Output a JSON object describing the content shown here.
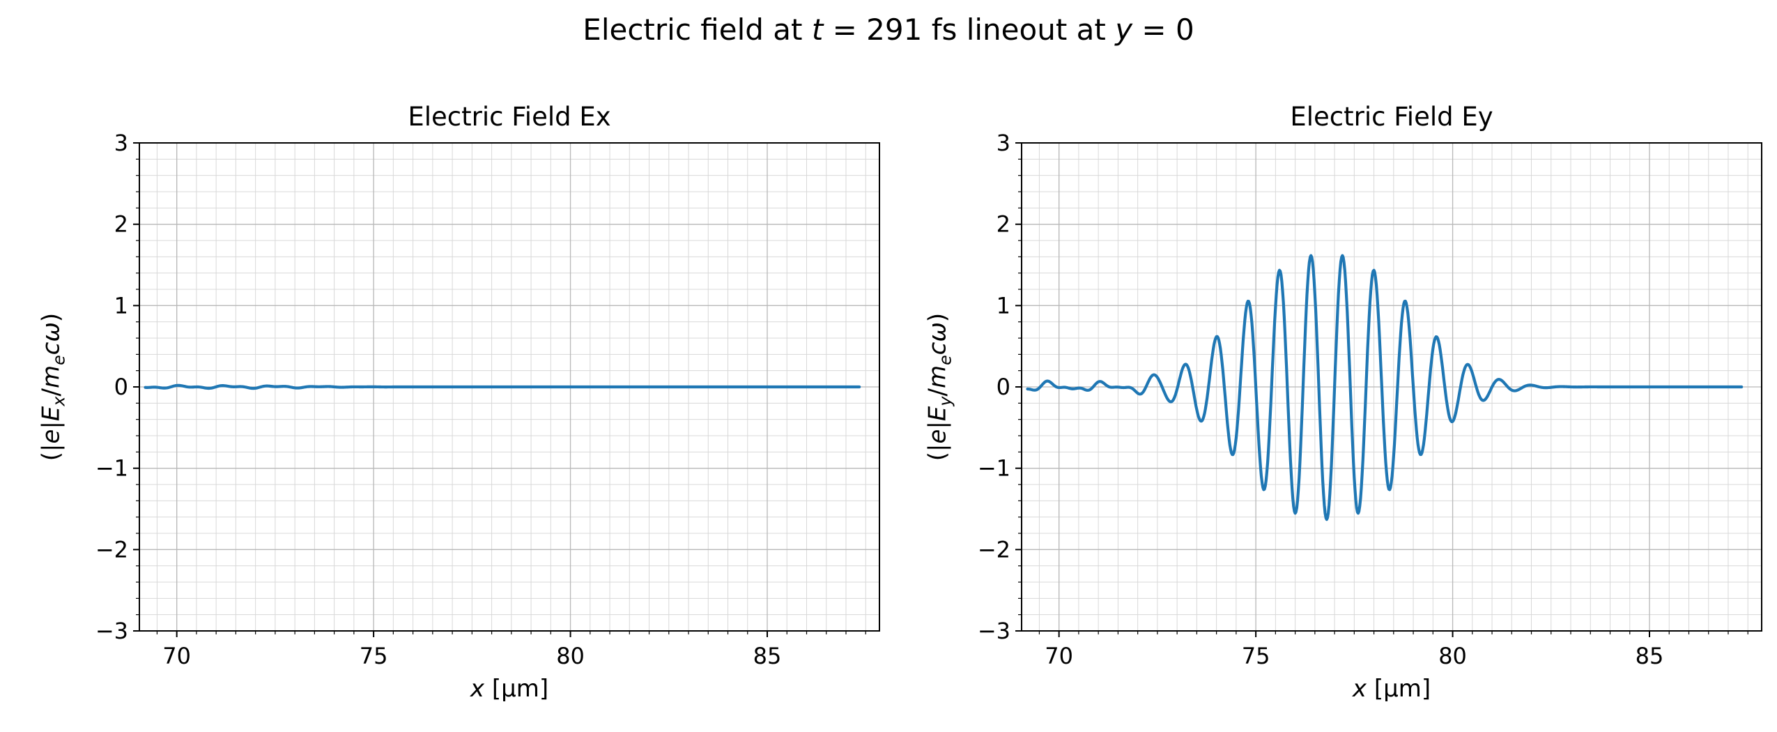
{
  "figure": {
    "title_plain": "Electric field at t = 291 fs lineout at y = 0",
    "title_parts": [
      {
        "t": "Electric field at "
      },
      {
        "t": "t",
        "i": true
      },
      {
        "t": " = 291 fs lineout at "
      },
      {
        "t": "y",
        "i": true
      },
      {
        "t": " = 0"
      }
    ],
    "background_color": "#ffffff",
    "accent_line_color": "#1f77b4",
    "grid_major_color": "#b8b8b8",
    "grid_minor_color": "#d8d8d8"
  },
  "chart_data": [
    {
      "type": "line",
      "title": "Electric Field Ex",
      "xlabel_plain": "x [μm]",
      "xlabel_parts": [
        {
          "t": "x",
          "i": true
        },
        {
          "t": " [μm]"
        }
      ],
      "ylabel_plain": "(|e|Ex/mecω)",
      "ylabel_parts": [
        {
          "t": "(|"
        },
        {
          "t": "e",
          "i": true
        },
        {
          "t": "|"
        },
        {
          "t": "E",
          "i": true
        },
        {
          "t": "x",
          "i": true,
          "sub": true
        },
        {
          "t": "/"
        },
        {
          "t": "m",
          "i": true
        },
        {
          "t": "e",
          "i": true,
          "sub": true
        },
        {
          "t": "c",
          "i": true
        },
        {
          "t": "ω",
          "i": true
        },
        {
          "t": ")"
        }
      ],
      "xlim": [
        69.05,
        87.85
      ],
      "ylim": [
        -3,
        3
      ],
      "x_ticks": [
        {
          "v": 70,
          "label": "70"
        },
        {
          "v": 75,
          "label": "75"
        },
        {
          "v": 80,
          "label": "80"
        },
        {
          "v": 85,
          "label": "85"
        }
      ],
      "y_ticks": [
        {
          "v": -3,
          "label": "−3"
        },
        {
          "v": -2,
          "label": "−2"
        },
        {
          "v": -1,
          "label": "−1"
        },
        {
          "v": 0,
          "label": "0"
        },
        {
          "v": 1,
          "label": "1"
        },
        {
          "v": 2,
          "label": "2"
        },
        {
          "v": 3,
          "label": "3"
        }
      ],
      "x_minor_step": 0.5,
      "y_minor_step": 0.2,
      "grid": "major+minor",
      "line_color": "#1f77b4",
      "series": [
        {
          "name": "Ex",
          "x_start": 69.2,
          "x_end": 87.35,
          "dx": 0.02,
          "model": {
            "noise": {
              "components": [
                {
                  "amp": 0.012,
                  "freq": 5.3,
                  "phase": 0.7
                },
                {
                  "amp": 0.008,
                  "freq": 11.3,
                  "phase": 2.1
                }
              ],
              "cutoff": 73.5,
              "cutoff_width": 0.6
            }
          }
        }
      ]
    },
    {
      "type": "line",
      "title": "Electric Field Ey",
      "xlabel_plain": "x [μm]",
      "xlabel_parts": [
        {
          "t": "x",
          "i": true
        },
        {
          "t": " [μm]"
        }
      ],
      "ylabel_plain": "(|e|Ey/mecω)",
      "ylabel_parts": [
        {
          "t": "(|"
        },
        {
          "t": "e",
          "i": true
        },
        {
          "t": "|"
        },
        {
          "t": "E",
          "i": true
        },
        {
          "t": "y",
          "i": true,
          "sub": true
        },
        {
          "t": "/"
        },
        {
          "t": "m",
          "i": true
        },
        {
          "t": "e",
          "i": true,
          "sub": true
        },
        {
          "t": "c",
          "i": true
        },
        {
          "t": "ω",
          "i": true
        },
        {
          "t": ")"
        }
      ],
      "xlim": [
        69.05,
        87.85
      ],
      "ylim": [
        -3,
        3
      ],
      "x_ticks": [
        {
          "v": 70,
          "label": "70"
        },
        {
          "v": 75,
          "label": "75"
        },
        {
          "v": 80,
          "label": "80"
        },
        {
          "v": 85,
          "label": "85"
        }
      ],
      "y_ticks": [
        {
          "v": -3,
          "label": "−3"
        },
        {
          "v": -2,
          "label": "−2"
        },
        {
          "v": -1,
          "label": "−1"
        },
        {
          "v": 0,
          "label": "0"
        },
        {
          "v": 1,
          "label": "1"
        },
        {
          "v": 2,
          "label": "2"
        },
        {
          "v": 3,
          "label": "3"
        }
      ],
      "x_minor_step": 0.5,
      "y_minor_step": 0.2,
      "grid": "major+minor",
      "line_color": "#1f77b4",
      "series": [
        {
          "name": "Ey",
          "x_start": 69.2,
          "x_end": 87.35,
          "dx": 0.02,
          "model": {
            "packet": {
              "amplitude": 1.63,
              "center": 76.8,
              "sigma": 2.0,
              "power": 1.2,
              "wavelength": 0.8,
              "phase": -1.5708
            },
            "noise": {
              "components": [
                {
                  "amp": 0.035,
                  "freq": 4.7,
                  "phase": 0.3
                },
                {
                  "amp": 0.025,
                  "freq": 9.1,
                  "phase": 1.9
                },
                {
                  "amp": 0.015,
                  "freq": 14.3,
                  "phase": 4.0
                }
              ],
              "cutoff": 73.3,
              "cutoff_width": 0.35
            }
          }
        }
      ]
    }
  ]
}
